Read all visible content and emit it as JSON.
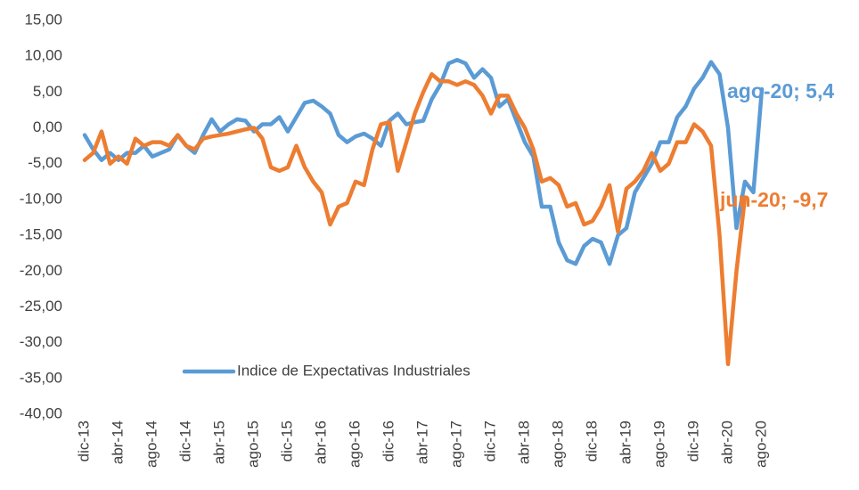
{
  "chart_data": {
    "type": "line",
    "categories": [
      "dic-13",
      null,
      null,
      null,
      "abr-14",
      null,
      null,
      null,
      "ago-14",
      null,
      null,
      null,
      "dic-14",
      null,
      null,
      null,
      "abr-15",
      null,
      null,
      null,
      "ago-15",
      null,
      null,
      null,
      "dic-15",
      null,
      null,
      null,
      "abr-16",
      null,
      null,
      null,
      "ago-16",
      null,
      null,
      null,
      "dic-16",
      null,
      null,
      null,
      "abr-17",
      null,
      null,
      null,
      "ago-17",
      null,
      null,
      null,
      "dic-17",
      null,
      null,
      null,
      "abr-18",
      null,
      null,
      null,
      "ago-18",
      null,
      null,
      null,
      "dic-18",
      null,
      null,
      null,
      "abr-19",
      null,
      null,
      null,
      "ago-19",
      null,
      null,
      null,
      "dic-19",
      null,
      null,
      null,
      "abr-20",
      null,
      null,
      null,
      "ago-20"
    ],
    "series": [
      {
        "name": "Indice de Expectativas Industriales",
        "color": "#5b9bd5",
        "values": [
          -1,
          -3,
          -4.5,
          -3.5,
          -4.5,
          -3.5,
          -3.5,
          -2.5,
          -4,
          -3.5,
          -3,
          -1,
          -2.5,
          -3.5,
          -1,
          1.2,
          -0.5,
          0.5,
          1.2,
          1,
          -0.5,
          0.5,
          0.5,
          1.5,
          -0.5,
          1.5,
          3.5,
          3.8,
          3,
          2,
          -1,
          -2,
          -1.2,
          -0.8,
          -1.5,
          -2.5,
          1,
          2,
          0.5,
          0.8,
          1,
          4,
          6,
          9,
          9.5,
          9,
          7,
          8.2,
          7,
          3,
          4,
          1,
          -2,
          -4,
          -11,
          -11,
          -16,
          -18.5,
          -19,
          -16.5,
          -15.5,
          -16,
          -19,
          -15,
          -14,
          -9,
          -7,
          -5,
          -2,
          -2,
          1.5,
          3,
          5.5,
          7,
          9.2,
          7.5,
          0,
          -14,
          -7.5,
          -9,
          5.4
        ]
      },
      {
        "color": "#ed7d31",
        "values": [
          -4.5,
          -3.5,
          -0.5,
          -5,
          -4,
          -5,
          -1.5,
          -2.5,
          -2,
          -2,
          -2.5,
          -1,
          -2.5,
          -3,
          -1.5,
          -1.2,
          -1,
          -0.8,
          -0.5,
          -0.2,
          0,
          -1.5,
          -5.5,
          -6,
          -5.5,
          -2.5,
          -5.5,
          -7.5,
          -9,
          -13.5,
          -11,
          -10.5,
          -7.5,
          -8,
          -3,
          0.5,
          0.8,
          -6,
          -2,
          2,
          5,
          7.5,
          6.5,
          6.5,
          6,
          6.5,
          6,
          4.5,
          2,
          4.5,
          4.5,
          2,
          0,
          -3,
          -7.5,
          -7,
          -8,
          -11,
          -10.5,
          -13.5,
          -13,
          -11,
          -8,
          -14.5,
          -8.5,
          -7.5,
          -6,
          -3.5,
          -6,
          -5,
          -2,
          -2,
          0.5,
          -0.5,
          -2.5,
          -15,
          -33,
          -20,
          -9.7,
          null,
          null
        ]
      }
    ],
    "annotations": [
      {
        "text": "ago-20; 5,4",
        "color": "#5b9bd5"
      },
      {
        "text": "jun-20; -9,7",
        "color": "#ed7d31"
      }
    ],
    "ylim": [
      -40,
      15
    ],
    "yticks": [
      {
        "value": -40,
        "label": "-40,00"
      },
      {
        "value": -35,
        "label": "-35,00"
      },
      {
        "value": -30,
        "label": "-30,00"
      },
      {
        "value": -25,
        "label": "-25,00"
      },
      {
        "value": -20,
        "label": "-20,00"
      },
      {
        "value": -15,
        "label": "-15,00"
      },
      {
        "value": -10,
        "label": "-10,00"
      },
      {
        "value": -5,
        "label": "-5,00"
      },
      {
        "value": 0,
        "label": "0,00"
      },
      {
        "value": 5,
        "label": "5,00"
      },
      {
        "value": 10,
        "label": "10,00"
      },
      {
        "value": 15,
        "label": "15,00"
      }
    ],
    "grid": false
  }
}
